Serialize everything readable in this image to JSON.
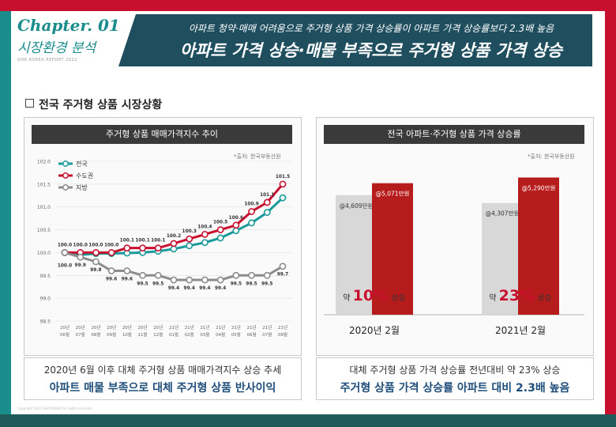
{
  "chapter": {
    "label": "Chapter. 01",
    "title": "시장환경 분석",
    "report": "GHR KOREA REPORT 2022"
  },
  "header": {
    "subtitle": "아파트 청약·매매 어려움으로 주거형 상품 가격 상승률이 아파트 가격 상승률보다 2.3배 높음",
    "title": "아파트 가격 상승·매물 부족으로 주거형 상품 가격 상승"
  },
  "section_title": "전국 주거형 상품 시장상황",
  "left_panel": {
    "heading": "주거형 상품 매매가격지수 추이",
    "source": "*출처: 한국부동산원",
    "caption_line1": "2020년 6월 이후 대체 주거형 상품 매매가격지수 상승 추세",
    "caption_line2": "아파트 매물 부족으로 대체 주거형 상품 반사이익"
  },
  "right_panel": {
    "heading": "전국 아파트·주거형 상품 가격 상승률",
    "source": "*출처: 한국부동산원",
    "caption_line1": "대체 주거형 상품 가격 상승률 전년대비 약 23% 상승",
    "caption_line2": "주거형 상품 가격 상승률 아파트 대비 2.3배 높음"
  },
  "footnote": "Copyright 2022 GHR KOREA All rights reserved.",
  "colors": {
    "nationwide": "#1a9a9a",
    "capital": "#c8102e",
    "regional": "#8c8c8c",
    "grey_bar": "#d8d8d8",
    "red_bar": "#b71c1c"
  },
  "chart_data": [
    {
      "type": "line",
      "x": [
        "20년\n06월",
        "20년\n07월",
        "20년\n08월",
        "20년\n09월",
        "20년\n10월",
        "20년\n11월",
        "20년\n12월",
        "21년\n01월",
        "21년\n02월",
        "21년\n03월",
        "21년\n04월",
        "21년\n05월",
        "21년\n06월",
        "21년\n07월",
        "21년\n08월"
      ],
      "ylim": [
        98.5,
        102.0
      ],
      "yticks": [
        "98.5",
        "99.0",
        "99.5",
        "100.0",
        "100.5",
        "101.0",
        "101.5",
        "102.0"
      ],
      "series": [
        {
          "name": "전국",
          "values": [
            100.0,
            99.95,
            99.98,
            99.98,
            99.99,
            100.0,
            100.03,
            100.08,
            100.15,
            100.22,
            100.32,
            100.48,
            100.65,
            100.88,
            101.2
          ]
        },
        {
          "name": "수도권",
          "values": [
            100.0,
            100.0,
            100.0,
            100.0,
            100.1,
            100.1,
            100.1,
            100.2,
            100.3,
            100.4,
            100.5,
            100.6,
            100.9,
            101.1,
            101.5
          ],
          "labels": [
            "100.0",
            "100.0",
            "100.0",
            "100.0",
            "100.1",
            "100.1",
            "100.1",
            "100.2",
            "100.3",
            "100.4",
            "100.5",
            "100.6",
            "100.9",
            "101.1",
            "101.5"
          ]
        },
        {
          "name": "지방",
          "values": [
            100.0,
            99.9,
            99.8,
            99.6,
            99.6,
            99.5,
            99.5,
            99.4,
            99.4,
            99.4,
            99.4,
            99.5,
            99.5,
            99.5,
            99.7
          ],
          "labels": [
            "100.0",
            "99.9",
            "99.8",
            "99.6",
            "99.6",
            "99.5",
            "99.5",
            "99.4",
            "99.4",
            "99.4",
            "99.4",
            "99.5",
            "99.5",
            "99.5",
            "99.7"
          ]
        }
      ],
      "legend": "top-left"
    },
    {
      "type": "bar",
      "categories": [
        "2020년  2월",
        "2021년  2월"
      ],
      "series": [
        {
          "name": "아파트",
          "values": [
            4609,
            4307
          ],
          "labels": [
            "@4,609만원",
            "@4,307만원"
          ]
        },
        {
          "name": "주거형 상품",
          "values": [
            5071,
            5290
          ],
          "labels": [
            "@5,071만원",
            "@5,290만원"
          ]
        }
      ],
      "annotations": [
        {
          "prefix": "약",
          "value": "10%",
          "suffix": "상승"
        },
        {
          "prefix": "약",
          "value": "23%",
          "suffix": "상승"
        }
      ]
    }
  ]
}
